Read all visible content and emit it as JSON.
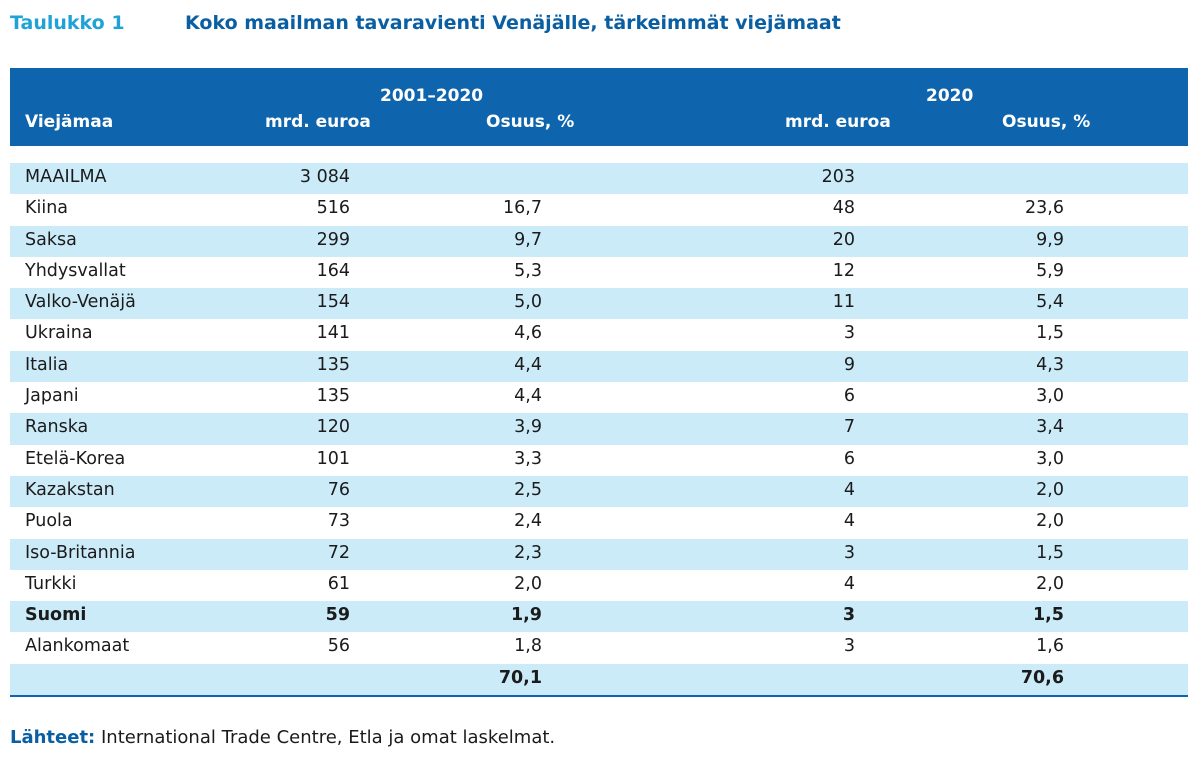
{
  "caption": {
    "label": "Taulukko 1",
    "title": "Koko maailman tavaravienti Venäjälle, tärkeimmät viejämaat"
  },
  "header": {
    "country": "Viejämaa",
    "period1": "2001–2020",
    "period2": "2020",
    "col_value": "mrd. euroa",
    "col_share": "Osuus, %"
  },
  "rows": [
    {
      "country": "MAAILMA",
      "v1": "3 084",
      "s1": "",
      "v2": "203",
      "s2": ""
    },
    {
      "country": "Kiina",
      "v1": "516",
      "s1": "16,7",
      "v2": "48",
      "s2": "23,6"
    },
    {
      "country": "Saksa",
      "v1": "299",
      "s1": "9,7",
      "v2": "20",
      "s2": "9,9"
    },
    {
      "country": "Yhdysvallat",
      "v1": "164",
      "s1": "5,3",
      "v2": "12",
      "s2": "5,9"
    },
    {
      "country": "Valko-Venäjä",
      "v1": "154",
      "s1": "5,0",
      "v2": "11",
      "s2": "5,4"
    },
    {
      "country": "Ukraina",
      "v1": "141",
      "s1": "4,6",
      "v2": "3",
      "s2": "1,5"
    },
    {
      "country": "Italia",
      "v1": "135",
      "s1": "4,4",
      "v2": "9",
      "s2": "4,3"
    },
    {
      "country": "Japani",
      "v1": "135",
      "s1": "4,4",
      "v2": "6",
      "s2": "3,0"
    },
    {
      "country": "Ranska",
      "v1": "120",
      "s1": "3,9",
      "v2": "7",
      "s2": "3,4"
    },
    {
      "country": "Etelä-Korea",
      "v1": "101",
      "s1": "3,3",
      "v2": "6",
      "s2": "3,0"
    },
    {
      "country": "Kazakstan",
      "v1": "76",
      "s1": "2,5",
      "v2": "4",
      "s2": "2,0"
    },
    {
      "country": "Puola",
      "v1": "73",
      "s1": "2,4",
      "v2": "4",
      "s2": "2,0"
    },
    {
      "country": "Iso-Britannia",
      "v1": "72",
      "s1": "2,3",
      "v2": "3",
      "s2": "1,5"
    },
    {
      "country": "Turkki",
      "v1": "61",
      "s1": "2,0",
      "v2": "4",
      "s2": "2,0"
    },
    {
      "country": "Suomi",
      "v1": "59",
      "s1": "1,9",
      "v2": "3",
      "s2": "1,5",
      "bold": true
    },
    {
      "country": "Alankomaat",
      "v1": "56",
      "s1": "1,8",
      "v2": "3",
      "s2": "1,6"
    },
    {
      "country": "",
      "v1": "",
      "s1": "70,1",
      "v2": "",
      "s2": "70,6",
      "bold": true
    }
  ],
  "source": {
    "label": "Lähteet:",
    "text": " International Trade Centre, Etla ja omat laskelmat."
  },
  "colors": {
    "header_bg": "#0f65ad",
    "stripe": "#ccebf9",
    "label_accent": "#1fa3d6",
    "title_blue": "#0a5fa3"
  }
}
